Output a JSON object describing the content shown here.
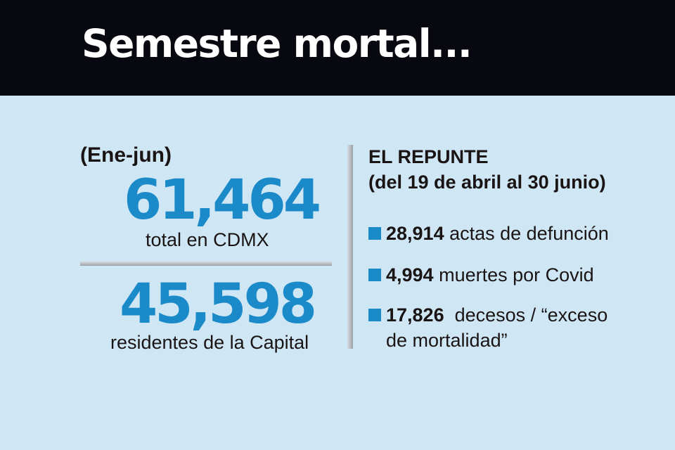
{
  "title": "Semestre mortal...",
  "left_panel": {
    "period": "(Ene-jun)",
    "total_number": "61,464",
    "total_caption": "total en CDMX",
    "residents_number": "45,598",
    "residents_caption": "residentes de la Capital"
  },
  "right_panel": {
    "heading_line1": "EL REPUNTE",
    "heading_line2": "(del 19 de abril al 30 junio)",
    "items": [
      {
        "value": "28,914",
        "text": " actas de defunción"
      },
      {
        "value": "4,994",
        "text": " muertes por Covid"
      },
      {
        "value": "17,826",
        "text": "  decesos / “exceso de mortalidad”"
      }
    ]
  },
  "colors": {
    "background": "#cfe6f5",
    "header": "#080810",
    "accent": "#1b8ac9"
  }
}
